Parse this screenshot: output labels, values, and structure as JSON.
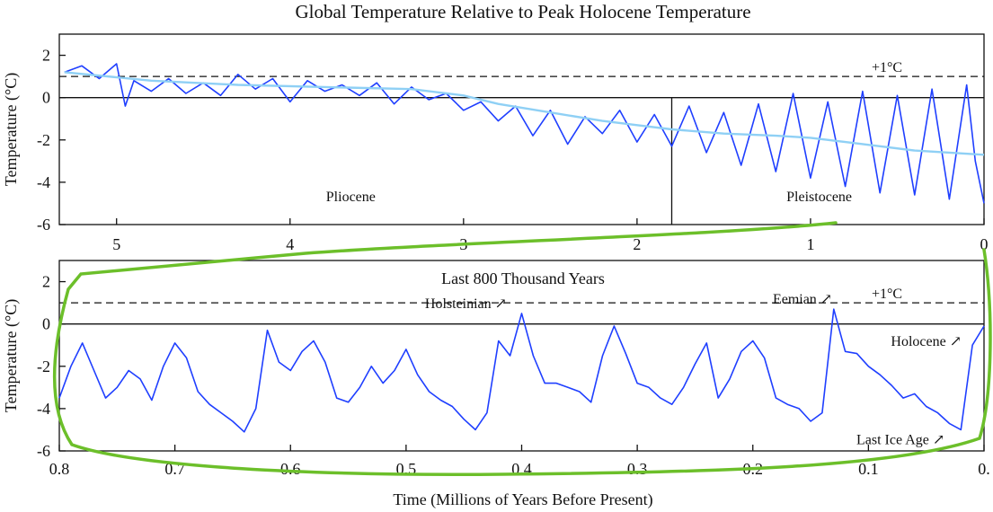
{
  "chart_data": [
    {
      "type": "line",
      "title": "Global Temperature Relative to Peak Holocene Temperature",
      "ylabel": "Temperature (°C)",
      "xlim": [
        5.33,
        0
      ],
      "ylim": [
        -6,
        3
      ],
      "xticks": [
        5,
        4,
        3,
        2,
        1,
        0
      ],
      "yticks": [
        2,
        0,
        -2,
        -4,
        -6
      ],
      "grid": false,
      "reference_lines": [
        {
          "y": 1,
          "style": "dashed",
          "label": "+1°C"
        },
        {
          "y": 0,
          "style": "solid"
        }
      ],
      "dividers": [
        {
          "x": 1.8
        }
      ],
      "annotations": [
        {
          "text": "Pliocene",
          "x": 3.65,
          "y": -4.9
        },
        {
          "text": "Pleistocene",
          "x": 0.95,
          "y": -4.9
        }
      ],
      "series": [
        {
          "color": "#1f3fff",
          "x": [
            5.3,
            5.2,
            5.1,
            5.0,
            4.95,
            4.9,
            4.8,
            4.7,
            4.6,
            4.5,
            4.4,
            4.3,
            4.2,
            4.1,
            4.0,
            3.9,
            3.8,
            3.7,
            3.6,
            3.5,
            3.4,
            3.3,
            3.2,
            3.1,
            3.0,
            2.9,
            2.8,
            2.7,
            2.6,
            2.5,
            2.4,
            2.3,
            2.2,
            2.1,
            2.0,
            1.9,
            1.8,
            1.7,
            1.6,
            1.5,
            1.4,
            1.3,
            1.2,
            1.1,
            1.0,
            0.9,
            0.8,
            0.7,
            0.6,
            0.5,
            0.4,
            0.3,
            0.2,
            0.1,
            0.05,
            0.0
          ],
          "y": [
            1.2,
            1.5,
            0.9,
            1.6,
            -0.4,
            0.8,
            0.3,
            0.9,
            0.2,
            0.7,
            0.1,
            1.1,
            0.4,
            0.9,
            -0.2,
            0.8,
            0.3,
            0.6,
            0.1,
            0.7,
            -0.3,
            0.5,
            -0.1,
            0.2,
            -0.6,
            -0.2,
            -1.1,
            -0.4,
            -1.8,
            -0.6,
            -2.2,
            -0.9,
            -1.7,
            -0.6,
            -2.1,
            -0.8,
            -2.3,
            -0.4,
            -2.6,
            -0.7,
            -3.2,
            -0.3,
            -3.5,
            0.2,
            -3.8,
            -0.2,
            -4.2,
            0.3,
            -4.5,
            0.1,
            -4.6,
            0.4,
            -4.8,
            0.6,
            -3.0,
            -5.0
          ]
        },
        {
          "color": "#8fd0f5",
          "x": [
            5.3,
            4.8,
            4.3,
            3.8,
            3.3,
            3.0,
            2.8,
            2.5,
            2.2,
            2.0,
            1.8,
            1.5,
            1.2,
            1.0,
            0.8,
            0.6,
            0.4,
            0.2,
            0.0
          ],
          "y": [
            1.2,
            0.8,
            0.6,
            0.5,
            0.4,
            0.1,
            -0.3,
            -0.7,
            -1.1,
            -1.3,
            -1.5,
            -1.7,
            -1.8,
            -1.9,
            -2.1,
            -2.3,
            -2.5,
            -2.6,
            -2.7
          ]
        }
      ]
    },
    {
      "type": "line",
      "title": "Last 800 Thousand Years",
      "xlabel": "Time (Millions of Years Before Present)",
      "ylabel": "Temperature (°C)",
      "xlim": [
        0.8,
        0.0
      ],
      "ylim": [
        -6,
        3
      ],
      "xticks": [
        0.8,
        0.7,
        0.6,
        0.5,
        0.4,
        0.3,
        0.2,
        0.1,
        0
      ],
      "xtick_labels": [
        "0.8",
        "0.7",
        "0.6",
        "0.5",
        "0.4",
        "0.3",
        "0.2",
        "0.1",
        "0."
      ],
      "yticks": [
        2,
        0,
        -2,
        -4,
        -6
      ],
      "grid": false,
      "reference_lines": [
        {
          "y": 1,
          "style": "dashed",
          "label": "+1°C"
        },
        {
          "y": 0,
          "style": "solid"
        }
      ],
      "annotations": [
        {
          "text": "Holsteinian",
          "x": 0.405,
          "y": 0.5,
          "arrow": true
        },
        {
          "text": "Eemian",
          "x": 0.125,
          "y": 0.7,
          "arrow": true
        },
        {
          "text": "Holocene",
          "x": 0.01,
          "y": -0.1,
          "arrow": true
        },
        {
          "text": "Last Ice Age",
          "x": 0.02,
          "y": -5.0,
          "arrow": true
        }
      ],
      "series": [
        {
          "color": "#1f3fff",
          "x": [
            0.8,
            0.79,
            0.78,
            0.77,
            0.76,
            0.75,
            0.74,
            0.73,
            0.72,
            0.71,
            0.7,
            0.69,
            0.68,
            0.67,
            0.66,
            0.65,
            0.64,
            0.63,
            0.62,
            0.61,
            0.6,
            0.59,
            0.58,
            0.57,
            0.56,
            0.55,
            0.54,
            0.53,
            0.52,
            0.51,
            0.5,
            0.49,
            0.48,
            0.47,
            0.46,
            0.45,
            0.44,
            0.43,
            0.42,
            0.41,
            0.4,
            0.39,
            0.38,
            0.37,
            0.36,
            0.35,
            0.34,
            0.33,
            0.32,
            0.31,
            0.3,
            0.29,
            0.28,
            0.27,
            0.26,
            0.25,
            0.24,
            0.23,
            0.22,
            0.21,
            0.2,
            0.19,
            0.18,
            0.17,
            0.16,
            0.15,
            0.14,
            0.13,
            0.12,
            0.11,
            0.1,
            0.09,
            0.08,
            0.07,
            0.06,
            0.05,
            0.04,
            0.03,
            0.02,
            0.01,
            0.0
          ],
          "y": [
            -3.5,
            -2.0,
            -0.9,
            -2.2,
            -3.5,
            -3.0,
            -2.2,
            -2.6,
            -3.6,
            -2.0,
            -0.9,
            -1.6,
            -3.2,
            -3.8,
            -4.2,
            -4.6,
            -5.1,
            -4.0,
            -0.3,
            -1.8,
            -2.2,
            -1.3,
            -0.8,
            -1.8,
            -3.5,
            -3.7,
            -3.0,
            -2.0,
            -2.8,
            -2.2,
            -1.2,
            -2.4,
            -3.2,
            -3.6,
            -3.9,
            -4.5,
            -5.0,
            -4.2,
            -0.8,
            -1.5,
            0.5,
            -1.5,
            -2.8,
            -2.8,
            -3.0,
            -3.2,
            -3.7,
            -1.5,
            -0.1,
            -1.4,
            -2.8,
            -3.0,
            -3.5,
            -3.8,
            -3.0,
            -1.9,
            -0.9,
            -3.5,
            -2.6,
            -1.3,
            -0.8,
            -1.6,
            -3.5,
            -3.8,
            -4.0,
            -4.6,
            -4.2,
            0.7,
            -1.3,
            -1.4,
            -2.0,
            -2.4,
            -2.9,
            -3.5,
            -3.3,
            -3.9,
            -4.2,
            -4.7,
            -5.0,
            -1.0,
            -0.1
          ]
        }
      ]
    }
  ]
}
